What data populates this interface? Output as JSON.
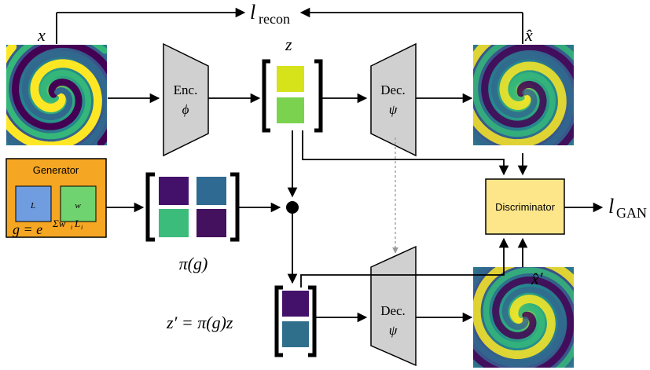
{
  "labels": {
    "x": "x",
    "z": "z",
    "x_hat": "x̂",
    "x_hat_prime": "x̂′",
    "l_recon_main": "l",
    "l_recon_sub": "recon",
    "l_gan_main": "l",
    "l_gan_sub": "GAN",
    "pi_g": "π(g)",
    "z_prime_eq": "z′ = π(g)z"
  },
  "encoder": {
    "title": "Enc.",
    "param": "ϕ"
  },
  "decoder_top": {
    "title": "Dec.",
    "param": "ψ"
  },
  "decoder_bottom": {
    "title": "Dec.",
    "param": "ψ"
  },
  "generator": {
    "title": "Generator",
    "matrix_label": "L",
    "weight_label": "w",
    "formula_lhs": "g = e",
    "formula_exp": "Σw",
    "formula_i1": "i",
    "formula_L": "L",
    "formula_i2": "i",
    "fill_color": "#f5a623",
    "L_color": "#6f9de0",
    "w_color": "#6fd36f"
  },
  "discriminator": {
    "title": "Discriminator",
    "fill_color": "#fde68a"
  },
  "colors": {
    "z_top": "#d6e21a",
    "z_bottom": "#7bd24f",
    "pi_tl": "#43116a",
    "pi_tr": "#2f6a92",
    "pi_bl": "#3cbc7a",
    "pi_br": "#44115e",
    "zp_top": "#43116a",
    "zp_bottom": "#2f6f8c",
    "trapezoid": "#d0d0d0"
  }
}
